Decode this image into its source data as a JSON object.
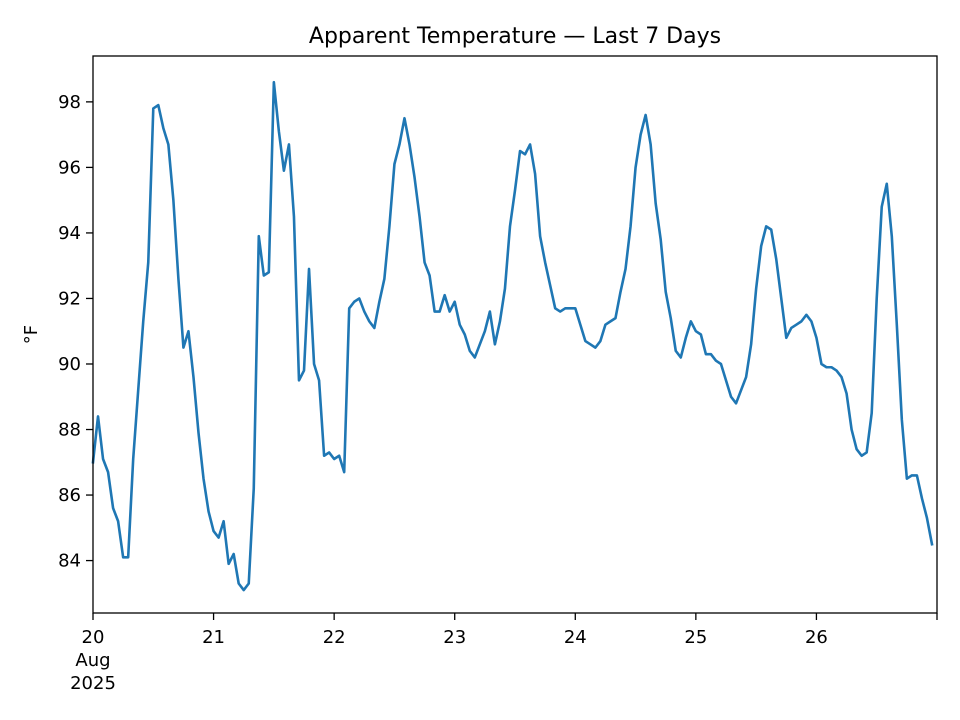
{
  "chart_data": {
    "type": "line",
    "title": "Apparent Temperature — Last 7 Days",
    "xlabel": "",
    "ylabel": "°F",
    "grid": false,
    "legend": "none",
    "x_start": "2025-08-20T00:00",
    "x_end": "2025-08-27T00:00",
    "x_step_hours": 1,
    "xlim": [
      "2025-08-20T00:00",
      "2025-08-27T00:00"
    ],
    "ylim": [
      82.4,
      99.4
    ],
    "x_ticks": [
      {
        "x": "2025-08-20T00:00",
        "lines": [
          "20",
          "Aug",
          "2025"
        ]
      },
      {
        "x": "2025-08-21T00:00",
        "lines": [
          "21"
        ]
      },
      {
        "x": "2025-08-22T00:00",
        "lines": [
          "22"
        ]
      },
      {
        "x": "2025-08-23T00:00",
        "lines": [
          "23"
        ]
      },
      {
        "x": "2025-08-24T00:00",
        "lines": [
          "24"
        ]
      },
      {
        "x": "2025-08-25T00:00",
        "lines": [
          "25"
        ]
      },
      {
        "x": "2025-08-26T00:00",
        "lines": [
          "26"
        ]
      },
      {
        "x": "2025-08-27T00:00",
        "lines": []
      }
    ],
    "y_ticks": [
      {
        "value": 84,
        "label": "84"
      },
      {
        "value": 86,
        "label": "86"
      },
      {
        "value": 88,
        "label": "88"
      },
      {
        "value": 90,
        "label": "90"
      },
      {
        "value": 92,
        "label": "92"
      },
      {
        "value": 94,
        "label": "94"
      },
      {
        "value": 96,
        "label": "96"
      },
      {
        "value": 98,
        "label": "98"
      }
    ],
    "series": [
      {
        "color": "#1f77b4",
        "values": [
          87.0,
          88.4,
          87.1,
          86.7,
          85.6,
          85.2,
          84.1,
          84.1,
          87.1,
          89.2,
          91.3,
          93.1,
          97.8,
          97.9,
          97.2,
          96.7,
          95.0,
          92.6,
          90.5,
          91.0,
          89.6,
          87.9,
          86.5,
          85.5,
          84.9,
          84.7,
          85.2,
          83.9,
          84.2,
          83.3,
          83.1,
          83.3,
          86.2,
          93.9,
          92.7,
          92.8,
          98.6,
          97.1,
          95.9,
          96.7,
          94.5,
          89.5,
          89.8,
          92.9,
          90.0,
          89.5,
          87.2,
          87.3,
          87.1,
          87.2,
          86.7,
          91.7,
          91.9,
          92.0,
          91.6,
          91.3,
          91.1,
          91.9,
          92.6,
          94.2,
          96.1,
          96.7,
          97.5,
          96.7,
          95.7,
          94.5,
          93.1,
          92.7,
          91.6,
          91.6,
          92.1,
          91.6,
          91.9,
          91.2,
          90.9,
          90.4,
          90.2,
          90.6,
          91.0,
          91.6,
          90.6,
          91.3,
          92.3,
          94.2,
          95.3,
          96.5,
          96.4,
          96.7,
          95.8,
          93.9,
          93.1,
          92.4,
          91.7,
          91.6,
          91.7,
          91.7,
          91.7,
          91.2,
          90.7,
          90.6,
          90.5,
          90.7,
          91.2,
          91.3,
          91.4,
          92.2,
          92.9,
          94.2,
          96.0,
          97.0,
          97.6,
          96.7,
          94.9,
          93.8,
          92.2,
          91.4,
          90.4,
          90.2,
          90.8,
          91.3,
          91.0,
          90.9,
          90.3,
          90.3,
          90.1,
          90.0,
          89.5,
          89.0,
          88.8,
          89.2,
          89.6,
          90.6,
          92.3,
          93.6,
          94.2,
          94.1,
          93.2,
          92.0,
          90.8,
          91.1,
          91.2,
          91.3,
          91.5,
          91.3,
          90.8,
          90.0,
          89.9,
          89.9,
          89.8,
          89.6,
          89.1,
          88.0,
          87.4,
          87.2,
          87.3,
          88.5,
          92.0,
          94.8,
          95.5,
          93.9,
          91.2,
          88.3,
          86.5,
          86.6,
          86.6,
          85.9,
          85.3,
          84.5
        ]
      }
    ]
  }
}
